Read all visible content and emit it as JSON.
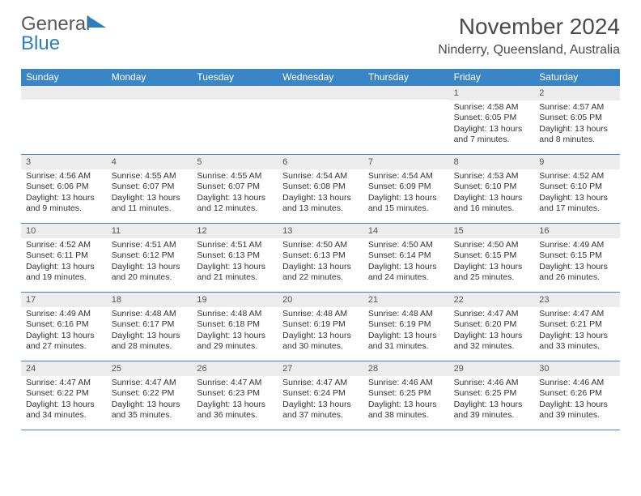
{
  "logo": {
    "text1": "General",
    "text2": "Blue"
  },
  "title": "November 2024",
  "subtitle": "Ninderry, Queensland, Australia",
  "colors": {
    "header_bg": "#3a85c6",
    "header_text": "#ffffff",
    "daynum_bg": "#ececec",
    "rule": "#3a85c6",
    "title_color": "#4a4a4a",
    "logo_gray": "#58595b",
    "logo_blue": "#2b7fbf"
  },
  "dow": [
    "Sunday",
    "Monday",
    "Tuesday",
    "Wednesday",
    "Thursday",
    "Friday",
    "Saturday"
  ],
  "weeks": [
    [
      {
        "empty": true
      },
      {
        "empty": true
      },
      {
        "empty": true
      },
      {
        "empty": true
      },
      {
        "empty": true
      },
      {
        "day": "1",
        "sunrise": "Sunrise: 4:58 AM",
        "sunset": "Sunset: 6:05 PM",
        "daylight": "Daylight: 13 hours and 7 minutes."
      },
      {
        "day": "2",
        "sunrise": "Sunrise: 4:57 AM",
        "sunset": "Sunset: 6:05 PM",
        "daylight": "Daylight: 13 hours and 8 minutes."
      }
    ],
    [
      {
        "day": "3",
        "sunrise": "Sunrise: 4:56 AM",
        "sunset": "Sunset: 6:06 PM",
        "daylight": "Daylight: 13 hours and 9 minutes."
      },
      {
        "day": "4",
        "sunrise": "Sunrise: 4:55 AM",
        "sunset": "Sunset: 6:07 PM",
        "daylight": "Daylight: 13 hours and 11 minutes."
      },
      {
        "day": "5",
        "sunrise": "Sunrise: 4:55 AM",
        "sunset": "Sunset: 6:07 PM",
        "daylight": "Daylight: 13 hours and 12 minutes."
      },
      {
        "day": "6",
        "sunrise": "Sunrise: 4:54 AM",
        "sunset": "Sunset: 6:08 PM",
        "daylight": "Daylight: 13 hours and 13 minutes."
      },
      {
        "day": "7",
        "sunrise": "Sunrise: 4:54 AM",
        "sunset": "Sunset: 6:09 PM",
        "daylight": "Daylight: 13 hours and 15 minutes."
      },
      {
        "day": "8",
        "sunrise": "Sunrise: 4:53 AM",
        "sunset": "Sunset: 6:10 PM",
        "daylight": "Daylight: 13 hours and 16 minutes."
      },
      {
        "day": "9",
        "sunrise": "Sunrise: 4:52 AM",
        "sunset": "Sunset: 6:10 PM",
        "daylight": "Daylight: 13 hours and 17 minutes."
      }
    ],
    [
      {
        "day": "10",
        "sunrise": "Sunrise: 4:52 AM",
        "sunset": "Sunset: 6:11 PM",
        "daylight": "Daylight: 13 hours and 19 minutes."
      },
      {
        "day": "11",
        "sunrise": "Sunrise: 4:51 AM",
        "sunset": "Sunset: 6:12 PM",
        "daylight": "Daylight: 13 hours and 20 minutes."
      },
      {
        "day": "12",
        "sunrise": "Sunrise: 4:51 AM",
        "sunset": "Sunset: 6:13 PM",
        "daylight": "Daylight: 13 hours and 21 minutes."
      },
      {
        "day": "13",
        "sunrise": "Sunrise: 4:50 AM",
        "sunset": "Sunset: 6:13 PM",
        "daylight": "Daylight: 13 hours and 22 minutes."
      },
      {
        "day": "14",
        "sunrise": "Sunrise: 4:50 AM",
        "sunset": "Sunset: 6:14 PM",
        "daylight": "Daylight: 13 hours and 24 minutes."
      },
      {
        "day": "15",
        "sunrise": "Sunrise: 4:50 AM",
        "sunset": "Sunset: 6:15 PM",
        "daylight": "Daylight: 13 hours and 25 minutes."
      },
      {
        "day": "16",
        "sunrise": "Sunrise: 4:49 AM",
        "sunset": "Sunset: 6:15 PM",
        "daylight": "Daylight: 13 hours and 26 minutes."
      }
    ],
    [
      {
        "day": "17",
        "sunrise": "Sunrise: 4:49 AM",
        "sunset": "Sunset: 6:16 PM",
        "daylight": "Daylight: 13 hours and 27 minutes."
      },
      {
        "day": "18",
        "sunrise": "Sunrise: 4:48 AM",
        "sunset": "Sunset: 6:17 PM",
        "daylight": "Daylight: 13 hours and 28 minutes."
      },
      {
        "day": "19",
        "sunrise": "Sunrise: 4:48 AM",
        "sunset": "Sunset: 6:18 PM",
        "daylight": "Daylight: 13 hours and 29 minutes."
      },
      {
        "day": "20",
        "sunrise": "Sunrise: 4:48 AM",
        "sunset": "Sunset: 6:19 PM",
        "daylight": "Daylight: 13 hours and 30 minutes."
      },
      {
        "day": "21",
        "sunrise": "Sunrise: 4:48 AM",
        "sunset": "Sunset: 6:19 PM",
        "daylight": "Daylight: 13 hours and 31 minutes."
      },
      {
        "day": "22",
        "sunrise": "Sunrise: 4:47 AM",
        "sunset": "Sunset: 6:20 PM",
        "daylight": "Daylight: 13 hours and 32 minutes."
      },
      {
        "day": "23",
        "sunrise": "Sunrise: 4:47 AM",
        "sunset": "Sunset: 6:21 PM",
        "daylight": "Daylight: 13 hours and 33 minutes."
      }
    ],
    [
      {
        "day": "24",
        "sunrise": "Sunrise: 4:47 AM",
        "sunset": "Sunset: 6:22 PM",
        "daylight": "Daylight: 13 hours and 34 minutes."
      },
      {
        "day": "25",
        "sunrise": "Sunrise: 4:47 AM",
        "sunset": "Sunset: 6:22 PM",
        "daylight": "Daylight: 13 hours and 35 minutes."
      },
      {
        "day": "26",
        "sunrise": "Sunrise: 4:47 AM",
        "sunset": "Sunset: 6:23 PM",
        "daylight": "Daylight: 13 hours and 36 minutes."
      },
      {
        "day": "27",
        "sunrise": "Sunrise: 4:47 AM",
        "sunset": "Sunset: 6:24 PM",
        "daylight": "Daylight: 13 hours and 37 minutes."
      },
      {
        "day": "28",
        "sunrise": "Sunrise: 4:46 AM",
        "sunset": "Sunset: 6:25 PM",
        "daylight": "Daylight: 13 hours and 38 minutes."
      },
      {
        "day": "29",
        "sunrise": "Sunrise: 4:46 AM",
        "sunset": "Sunset: 6:25 PM",
        "daylight": "Daylight: 13 hours and 39 minutes."
      },
      {
        "day": "30",
        "sunrise": "Sunrise: 4:46 AM",
        "sunset": "Sunset: 6:26 PM",
        "daylight": "Daylight: 13 hours and 39 minutes."
      }
    ]
  ]
}
